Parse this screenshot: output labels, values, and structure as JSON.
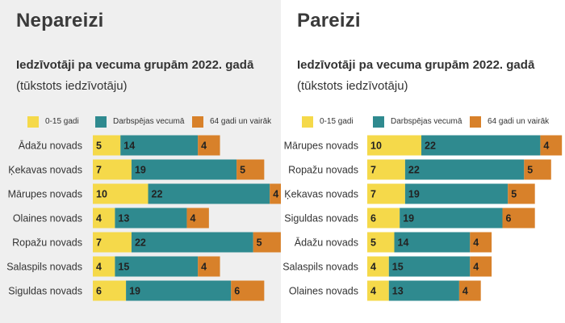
{
  "colors": {
    "young": "#f5d94a",
    "working": "#2f8a8f",
    "senior": "#d8812a",
    "left_background": "#efefef",
    "right_background": "#ffffff"
  },
  "legend": [
    {
      "key": "young",
      "label": "0-15 gadi"
    },
    {
      "key": "working",
      "label": "Darbspējas vecumā"
    },
    {
      "key": "senior",
      "label": "64 gadi un vairāk"
    }
  ],
  "panels": {
    "left": {
      "heading": "Nepareizi",
      "title": "Iedzīvotāji pa vecuma grupām 2022. gadā",
      "subtitle": "(tūkstots iedzīvotāju)"
    },
    "right": {
      "heading": "Pareizi",
      "title": "Iedzīvotāji pa vecuma grupām 2022. gadā",
      "subtitle": "(tūkstots iedzīvotāju)"
    }
  },
  "chart_data": [
    {
      "type": "bar",
      "orientation": "horizontal",
      "stacked": true,
      "title": "Iedzīvotāji pa vecuma grupām 2022. gadā",
      "subtitle": "(tūkstots iedzīvotāju)",
      "categories": [
        "Ādažu novads",
        "Ķekavas novads",
        "Mārupes novads",
        "Olaines novads",
        "Ropažu novads",
        "Salaspils novads",
        "Siguldas novads"
      ],
      "series": [
        {
          "name": "0-15 gadi",
          "color_key": "young",
          "values": [
            5,
            7,
            10,
            4,
            7,
            4,
            6
          ]
        },
        {
          "name": "Darbspējas vecumā",
          "color_key": "working",
          "values": [
            14,
            19,
            22,
            13,
            22,
            15,
            19
          ]
        },
        {
          "name": "64 gadi un vairāk",
          "color_key": "senior",
          "values": [
            4,
            5,
            4,
            4,
            5,
            4,
            6
          ]
        }
      ],
      "legend_position": "top",
      "grid": false
    },
    {
      "type": "bar",
      "orientation": "horizontal",
      "stacked": true,
      "title": "Iedzīvotāji pa vecuma grupām 2022. gadā",
      "subtitle": "(tūkstots iedzīvotāju)",
      "categories": [
        "Mārupes novads",
        "Ropažu novads",
        "Ķekavas novads",
        "Siguldas novads",
        "Ādažu novads",
        "Salaspils novads",
        "Olaines novads"
      ],
      "series": [
        {
          "name": "0-15 gadi",
          "color_key": "young",
          "values": [
            10,
            7,
            7,
            6,
            5,
            4,
            4
          ]
        },
        {
          "name": "Darbspējas vecumā",
          "color_key": "working",
          "values": [
            22,
            22,
            19,
            19,
            14,
            15,
            13
          ]
        },
        {
          "name": "64 gadi un vairāk",
          "color_key": "senior",
          "values": [
            4,
            5,
            5,
            6,
            4,
            4,
            4
          ]
        }
      ],
      "legend_position": "top",
      "grid": false
    }
  ]
}
